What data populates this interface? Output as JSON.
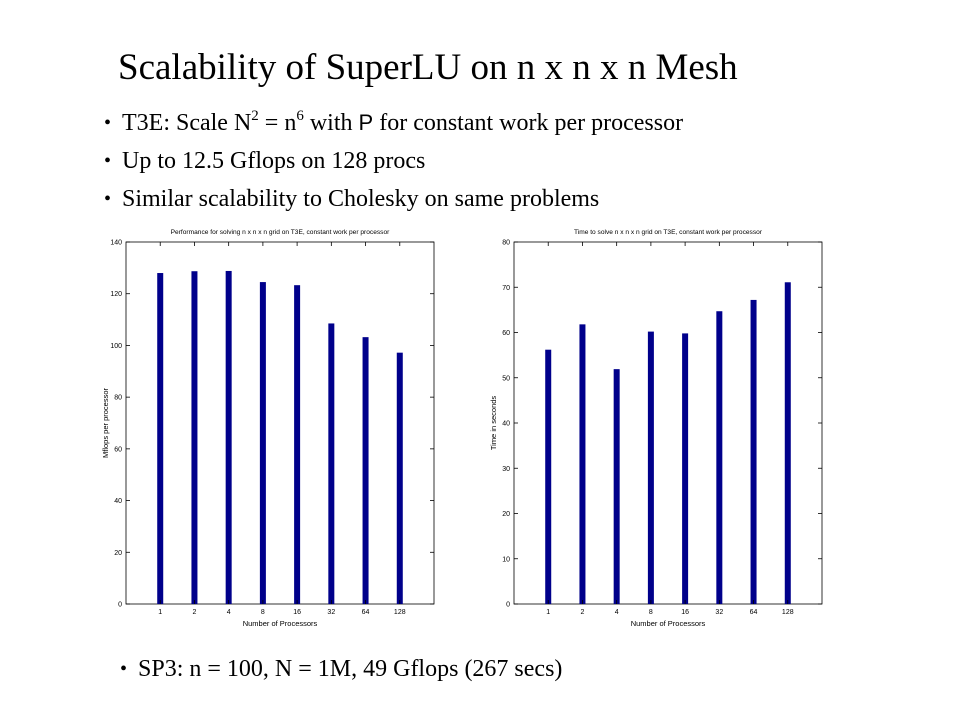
{
  "slide": {
    "title": "Scalability of SuperLU on n x n x n Mesh",
    "bullets": [
      {
        "pre": "T3E: Scale N",
        "sup1": "2",
        "mid": " = n",
        "sup2": "6",
        "post": " with ",
        "sans": "P",
        "tail": " for constant work per processor"
      },
      {
        "text": "Up to 12.5 Gflops on 128 procs"
      },
      {
        "text": "Similar scalability to Cholesky on same problems"
      }
    ],
    "bottom_bullet": "SP3: n = 100,  N = 1M,  49 Gflops  (267 secs)"
  },
  "colors": {
    "bar": "#00008b",
    "axis": "#000000",
    "text": "#000000"
  },
  "chart_data": [
    {
      "type": "bar",
      "title": "Performance for solving n x n x n grid on T3E, constant work per processor",
      "xlabel": "Number of Processors",
      "ylabel": "Mflops per processor",
      "categories": [
        "1",
        "2",
        "4",
        "8",
        "16",
        "32",
        "64",
        "128"
      ],
      "values": [
        128,
        128.7,
        128.8,
        124.5,
        123.3,
        108.5,
        103.2,
        97.2
      ],
      "ylim": [
        0,
        140
      ],
      "yticks": [
        0,
        20,
        40,
        60,
        80,
        100,
        120,
        140
      ],
      "grid": false
    },
    {
      "type": "bar",
      "title": "Time to solve n x n x n grid on T3E, constant work per processor",
      "xlabel": "Number of Processors",
      "ylabel": "Time in seconds",
      "categories": [
        "1",
        "2",
        "4",
        "8",
        "16",
        "32",
        "64",
        "128"
      ],
      "values": [
        56.2,
        61.8,
        51.9,
        60.2,
        59.8,
        64.7,
        67.2,
        71.1
      ],
      "ylim": [
        0,
        80
      ],
      "yticks": [
        0,
        10,
        20,
        30,
        40,
        50,
        60,
        70,
        80
      ],
      "grid": false
    }
  ]
}
